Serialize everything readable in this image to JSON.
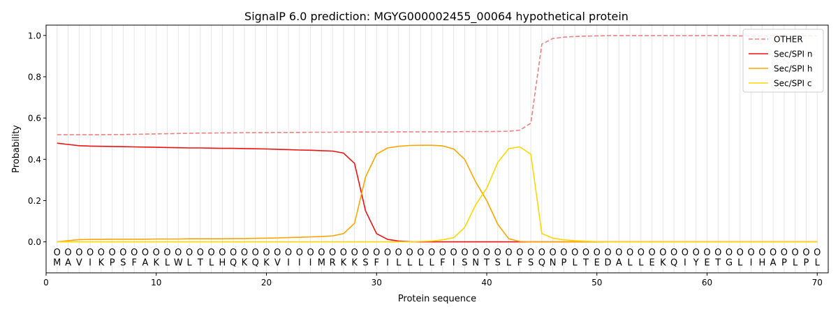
{
  "chart_data": {
    "type": "line",
    "title": "SignalP 6.0 prediction: MGYG000002455_00064 hypothetical protein",
    "xlabel": "Protein sequence",
    "ylabel": "Probability",
    "xlim": [
      0,
      71
    ],
    "ylim": [
      -0.15,
      1.05
    ],
    "x_ticks": [
      0,
      10,
      20,
      30,
      40,
      50,
      60,
      70
    ],
    "y_ticks": [
      0.0,
      0.2,
      0.4,
      0.6,
      0.8,
      1.0
    ],
    "x_tick_labels": [
      "0",
      "10",
      "20",
      "30",
      "40",
      "50",
      "60",
      "70"
    ],
    "y_tick_labels": [
      "0.0",
      "0.2",
      "0.4",
      "0.6",
      "0.8",
      "1.0"
    ],
    "vertical_grid": true,
    "legend_position": "top-right",
    "sequence": [
      "M",
      "A",
      "V",
      "I",
      "K",
      "P",
      "S",
      "F",
      "A",
      "K",
      "L",
      "W",
      "L",
      "T",
      "L",
      "H",
      "Q",
      "K",
      "Q",
      "K",
      "V",
      "I",
      "I",
      "I",
      "M",
      "R",
      "K",
      "K",
      "S",
      "F",
      "I",
      "L",
      "L",
      "L",
      "L",
      "F",
      "I",
      "S",
      "N",
      "T",
      "S",
      "L",
      "F",
      "S",
      "Q",
      "N",
      "P",
      "L",
      "T",
      "E",
      "D",
      "A",
      "L",
      "L",
      "E",
      "K",
      "Q",
      "I",
      "Y",
      "E",
      "T",
      "G",
      "L",
      "I",
      "H",
      "A",
      "P",
      "L",
      "P",
      "L"
    ],
    "region_labels": [
      "O",
      "O",
      "O",
      "O",
      "O",
      "O",
      "O",
      "O",
      "O",
      "O",
      "O",
      "O",
      "O",
      "O",
      "O",
      "O",
      "O",
      "O",
      "O",
      "O",
      "O",
      "O",
      "O",
      "O",
      "O",
      "O",
      "O",
      "O",
      "O",
      "O",
      "O",
      "O",
      "O",
      "O",
      "O",
      "O",
      "O",
      "O",
      "O",
      "O",
      "O",
      "O",
      "O",
      "O",
      "O",
      "O",
      "O",
      "O",
      "O",
      "O",
      "O",
      "O",
      "O",
      "O",
      "O",
      "O",
      "O",
      "O",
      "O",
      "O",
      "O",
      "O",
      "O",
      "O",
      "O",
      "O",
      "O",
      "O",
      "O",
      "O"
    ],
    "series": [
      {
        "name": "OTHER",
        "color": "#f08080",
        "dashed": true,
        "values": [
          0.519,
          0.519,
          0.519,
          0.519,
          0.519,
          0.52,
          0.52,
          0.521,
          0.522,
          0.523,
          0.524,
          0.525,
          0.526,
          0.527,
          0.527,
          0.528,
          0.528,
          0.529,
          0.529,
          0.529,
          0.53,
          0.53,
          0.53,
          0.531,
          0.531,
          0.531,
          0.532,
          0.532,
          0.532,
          0.532,
          0.532,
          0.533,
          0.533,
          0.533,
          0.533,
          0.533,
          0.533,
          0.534,
          0.534,
          0.534,
          0.535,
          0.536,
          0.541,
          0.575,
          0.958,
          0.985,
          0.992,
          0.995,
          0.997,
          0.998,
          0.999,
          0.999,
          0.999,
          0.999,
          0.999,
          0.999,
          0.999,
          0.999,
          0.999,
          0.999,
          0.999,
          0.999,
          0.998,
          0.998,
          0.998,
          0.998,
          0.998,
          0.998,
          0.998,
          0.998
        ]
      },
      {
        "name": "Sec/SPI n",
        "color": "#ee1111",
        "dashed": false,
        "values": [
          0.478,
          0.472,
          0.466,
          0.464,
          0.463,
          0.462,
          0.461,
          0.46,
          0.459,
          0.458,
          0.457,
          0.456,
          0.455,
          0.455,
          0.454,
          0.453,
          0.453,
          0.452,
          0.451,
          0.45,
          0.448,
          0.447,
          0.445,
          0.444,
          0.442,
          0.44,
          0.43,
          0.38,
          0.15,
          0.04,
          0.012,
          0.004,
          0.001,
          0.0,
          0.0,
          0.0,
          0.0,
          0.0,
          0.0,
          0.0,
          0.0,
          0.0,
          0.0,
          0.0,
          0.0,
          0.0,
          0.0,
          0.0,
          0.0,
          0.0,
          0.0,
          0.0,
          0.0,
          0.0,
          0.0,
          0.0,
          0.0,
          0.0,
          0.0,
          0.0,
          0.0,
          0.0,
          0.0,
          0.0,
          0.0,
          0.0,
          0.0,
          0.0,
          0.0,
          0.0
        ]
      },
      {
        "name": "Sec/SPI h",
        "color": "#ffa500",
        "dashed": false,
        "values": [
          0.0,
          0.006,
          0.011,
          0.012,
          0.012,
          0.013,
          0.013,
          0.013,
          0.013,
          0.014,
          0.014,
          0.014,
          0.015,
          0.015,
          0.015,
          0.015,
          0.016,
          0.016,
          0.017,
          0.018,
          0.019,
          0.021,
          0.022,
          0.024,
          0.026,
          0.029,
          0.04,
          0.09,
          0.315,
          0.425,
          0.455,
          0.463,
          0.467,
          0.468,
          0.468,
          0.465,
          0.45,
          0.4,
          0.29,
          0.2,
          0.085,
          0.015,
          0.002,
          0.0,
          0.0,
          0.0,
          0.0,
          0.0,
          0.0,
          0.0,
          0.0,
          0.0,
          0.0,
          0.0,
          0.0,
          0.0,
          0.0,
          0.0,
          0.0,
          0.0,
          0.0,
          0.0,
          0.0,
          0.0,
          0.0,
          0.0,
          0.0,
          0.0,
          0.0,
          0.0
        ]
      },
      {
        "name": "Sec/SPI c",
        "color": "#ffd700",
        "dashed": false,
        "values": [
          0.0,
          0.0,
          0.0,
          0.0,
          0.0,
          0.0,
          0.0,
          0.0,
          0.0,
          0.0,
          0.0,
          0.0,
          0.0,
          0.0,
          0.0,
          0.0,
          0.0,
          0.0,
          0.0,
          0.0,
          0.0,
          0.0,
          0.0,
          0.0,
          0.0,
          0.0,
          0.0,
          0.0,
          0.0,
          0.0,
          0.0,
          0.0,
          0.0,
          0.002,
          0.004,
          0.01,
          0.02,
          0.07,
          0.18,
          0.26,
          0.385,
          0.452,
          0.46,
          0.425,
          0.04,
          0.018,
          0.01,
          0.006,
          0.003,
          0.001,
          0.0,
          0.0,
          0.0,
          0.0,
          0.0,
          0.0,
          0.0,
          0.0,
          0.0,
          0.0,
          0.0,
          0.0,
          0.0,
          0.0,
          0.0,
          0.0,
          0.0,
          0.0,
          0.0,
          0.0
        ]
      }
    ]
  }
}
